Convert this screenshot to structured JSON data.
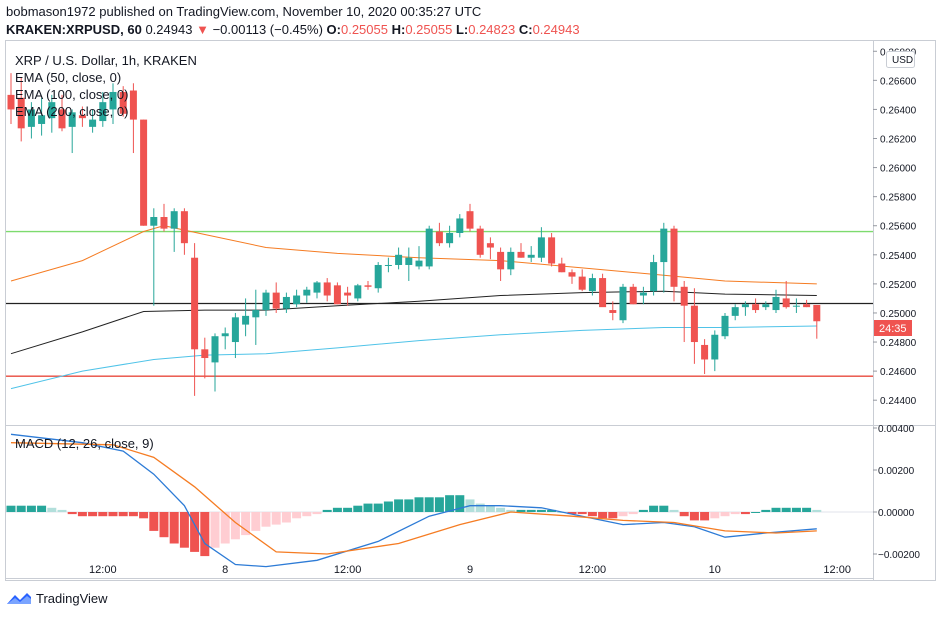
{
  "header": {
    "line1": "bobmason1972 published on TradingView.com, November 10, 2020 00:35:27 UTC",
    "symbol": "KRAKEN:XRPUSD, 60",
    "last": "0.24943",
    "arrow": "▼",
    "change": "−0.00113 (−0.45%)",
    "o_label": "O:",
    "o_value": "0.25055",
    "h_label": "H:",
    "h_value": "0.25055",
    "l_label": "L:",
    "l_value": "0.24823",
    "c_label": "C:",
    "c_value": "0.24943"
  },
  "legend": {
    "title": "XRP / U.S. Dollar, 1h, KRAKEN",
    "ema50": "EMA (50, close, 0)",
    "ema100": "EMA (100, close, 0)",
    "ema200": "EMA (200, close, 0)",
    "macd": "MACD (12, 26, close, 9)"
  },
  "axis": {
    "currency": "USD",
    "countdown": "24:35"
  },
  "footer": {
    "brand": "TradingView"
  },
  "colors": {
    "up": "#26a69a",
    "down": "#ef5350",
    "ema50": "#f57c23",
    "ema100": "#222222",
    "ema200": "#4fc3e8",
    "support_green": "#7ddb6e",
    "support_red": "#e84a3d",
    "macd_line": "#2d7bd6",
    "signal_line": "#f57c23"
  },
  "chart_data": [
    {
      "type": "candlestick",
      "title": "XRP / U.S. Dollar, 1h, KRAKEN",
      "x_ticks": [
        "12:00",
        "8",
        "12:00",
        "9",
        "12:00",
        "10",
        "12:00"
      ],
      "y_ticks": [
        "0.26800",
        "0.26600",
        "0.26400",
        "0.26200",
        "0.26000",
        "0.25800",
        "0.25600",
        "0.25400",
        "0.25200",
        "0.25000",
        "0.24800",
        "0.24600",
        "0.24400"
      ],
      "ylim": [
        0.2425,
        0.2685
      ],
      "hlines": [
        0.2556,
        0.25065,
        0.24565
      ],
      "candles": [
        {
          "o": 0.265,
          "h": 0.2665,
          "l": 0.263,
          "c": 0.264
        },
        {
          "o": 0.2648,
          "h": 0.2662,
          "l": 0.2618,
          "c": 0.2627
        },
        {
          "o": 0.2628,
          "h": 0.2645,
          "l": 0.262,
          "c": 0.264
        },
        {
          "o": 0.263,
          "h": 0.2648,
          "l": 0.2622,
          "c": 0.2636
        },
        {
          "o": 0.2634,
          "h": 0.265,
          "l": 0.2624,
          "c": 0.2645
        },
        {
          "o": 0.264,
          "h": 0.265,
          "l": 0.2625,
          "c": 0.2627
        },
        {
          "o": 0.2628,
          "h": 0.264,
          "l": 0.261,
          "c": 0.2638
        },
        {
          "o": 0.2636,
          "h": 0.2642,
          "l": 0.2628,
          "c": 0.2634
        },
        {
          "o": 0.2628,
          "h": 0.264,
          "l": 0.2624,
          "c": 0.2633
        },
        {
          "o": 0.2632,
          "h": 0.2652,
          "l": 0.2628,
          "c": 0.2645
        },
        {
          "o": 0.264,
          "h": 0.2658,
          "l": 0.263,
          "c": 0.2652
        },
        {
          "o": 0.2652,
          "h": 0.2656,
          "l": 0.2635,
          "c": 0.2637
        },
        {
          "o": 0.2653,
          "h": 0.2658,
          "l": 0.261,
          "c": 0.2633
        },
        {
          "o": 0.2633,
          "h": 0.2633,
          "l": 0.256,
          "c": 0.256
        },
        {
          "o": 0.256,
          "h": 0.2572,
          "l": 0.2505,
          "c": 0.2566
        },
        {
          "o": 0.2566,
          "h": 0.2575,
          "l": 0.2556,
          "c": 0.2558
        },
        {
          "o": 0.2558,
          "h": 0.2572,
          "l": 0.2542,
          "c": 0.257
        },
        {
          "o": 0.257,
          "h": 0.2572,
          "l": 0.254,
          "c": 0.2548
        },
        {
          "o": 0.2538,
          "h": 0.2548,
          "l": 0.2443,
          "c": 0.2475
        },
        {
          "o": 0.2475,
          "h": 0.2483,
          "l": 0.2455,
          "c": 0.2469
        },
        {
          "o": 0.2466,
          "h": 0.2486,
          "l": 0.2446,
          "c": 0.2484
        },
        {
          "o": 0.2484,
          "h": 0.249,
          "l": 0.2475,
          "c": 0.2486
        },
        {
          "o": 0.248,
          "h": 0.25,
          "l": 0.2469,
          "c": 0.2497
        },
        {
          "o": 0.2492,
          "h": 0.251,
          "l": 0.2484,
          "c": 0.2498
        },
        {
          "o": 0.2497,
          "h": 0.2516,
          "l": 0.2478,
          "c": 0.2502
        },
        {
          "o": 0.2502,
          "h": 0.2516,
          "l": 0.2498,
          "c": 0.2514
        },
        {
          "o": 0.2514,
          "h": 0.2521,
          "l": 0.25,
          "c": 0.2503
        },
        {
          "o": 0.2503,
          "h": 0.2514,
          "l": 0.25,
          "c": 0.2511
        },
        {
          "o": 0.2506,
          "h": 0.2516,
          "l": 0.2504,
          "c": 0.2512
        },
        {
          "o": 0.2512,
          "h": 0.2518,
          "l": 0.2507,
          "c": 0.2516
        },
        {
          "o": 0.2514,
          "h": 0.2522,
          "l": 0.251,
          "c": 0.2521
        },
        {
          "o": 0.2521,
          "h": 0.2524,
          "l": 0.2508,
          "c": 0.2512
        },
        {
          "o": 0.2519,
          "h": 0.2521,
          "l": 0.2506,
          "c": 0.2506
        },
        {
          "o": 0.2514,
          "h": 0.2518,
          "l": 0.2505,
          "c": 0.2512
        },
        {
          "o": 0.251,
          "h": 0.252,
          "l": 0.2508,
          "c": 0.2519
        },
        {
          "o": 0.2519,
          "h": 0.2522,
          "l": 0.2516,
          "c": 0.2518
        },
        {
          "o": 0.2517,
          "h": 0.2535,
          "l": 0.2514,
          "c": 0.2533
        },
        {
          "o": 0.2533,
          "h": 0.2538,
          "l": 0.2528,
          "c": 0.2533
        },
        {
          "o": 0.2533,
          "h": 0.2545,
          "l": 0.253,
          "c": 0.254
        },
        {
          "o": 0.2533,
          "h": 0.2545,
          "l": 0.2522,
          "c": 0.2538
        },
        {
          "o": 0.2532,
          "h": 0.2546,
          "l": 0.253,
          "c": 0.2536
        },
        {
          "o": 0.2532,
          "h": 0.256,
          "l": 0.253,
          "c": 0.2558
        },
        {
          "o": 0.2556,
          "h": 0.2562,
          "l": 0.2546,
          "c": 0.2548
        },
        {
          "o": 0.2548,
          "h": 0.256,
          "l": 0.2545,
          "c": 0.2555
        },
        {
          "o": 0.2555,
          "h": 0.2568,
          "l": 0.2552,
          "c": 0.2565
        },
        {
          "o": 0.257,
          "h": 0.2575,
          "l": 0.2556,
          "c": 0.2558
        },
        {
          "o": 0.2558,
          "h": 0.256,
          "l": 0.2538,
          "c": 0.254
        },
        {
          "o": 0.2548,
          "h": 0.2552,
          "l": 0.2537,
          "c": 0.2545
        },
        {
          "o": 0.2542,
          "h": 0.2545,
          "l": 0.2522,
          "c": 0.253
        },
        {
          "o": 0.253,
          "h": 0.2545,
          "l": 0.2526,
          "c": 0.2542
        },
        {
          "o": 0.2542,
          "h": 0.2548,
          "l": 0.2538,
          "c": 0.2538
        },
        {
          "o": 0.2538,
          "h": 0.2546,
          "l": 0.2535,
          "c": 0.254
        },
        {
          "o": 0.2538,
          "h": 0.2559,
          "l": 0.2535,
          "c": 0.2552
        },
        {
          "o": 0.2552,
          "h": 0.2555,
          "l": 0.2532,
          "c": 0.2534
        },
        {
          "o": 0.2534,
          "h": 0.2538,
          "l": 0.2528,
          "c": 0.2528
        },
        {
          "o": 0.2528,
          "h": 0.253,
          "l": 0.252,
          "c": 0.2525
        },
        {
          "o": 0.2525,
          "h": 0.253,
          "l": 0.2515,
          "c": 0.2516
        },
        {
          "o": 0.2515,
          "h": 0.2527,
          "l": 0.2512,
          "c": 0.2524
        },
        {
          "o": 0.2524,
          "h": 0.2527,
          "l": 0.2506,
          "c": 0.2504
        },
        {
          "o": 0.2502,
          "h": 0.2508,
          "l": 0.2495,
          "c": 0.25
        },
        {
          "o": 0.2495,
          "h": 0.252,
          "l": 0.2493,
          "c": 0.2518
        },
        {
          "o": 0.2518,
          "h": 0.252,
          "l": 0.2506,
          "c": 0.2506
        },
        {
          "o": 0.2512,
          "h": 0.2518,
          "l": 0.2506,
          "c": 0.2514
        },
        {
          "o": 0.2515,
          "h": 0.254,
          "l": 0.2512,
          "c": 0.2535
        },
        {
          "o": 0.2535,
          "h": 0.2562,
          "l": 0.2514,
          "c": 0.2558
        },
        {
          "o": 0.2558,
          "h": 0.256,
          "l": 0.2508,
          "c": 0.2518
        },
        {
          "o": 0.2518,
          "h": 0.2522,
          "l": 0.248,
          "c": 0.2505
        },
        {
          "o": 0.2505,
          "h": 0.2517,
          "l": 0.2465,
          "c": 0.248
        },
        {
          "o": 0.2478,
          "h": 0.2482,
          "l": 0.2458,
          "c": 0.2468
        },
        {
          "o": 0.2468,
          "h": 0.2488,
          "l": 0.246,
          "c": 0.2485
        },
        {
          "o": 0.2484,
          "h": 0.25,
          "l": 0.2482,
          "c": 0.2498
        },
        {
          "o": 0.2498,
          "h": 0.2506,
          "l": 0.2495,
          "c": 0.2504
        },
        {
          "o": 0.2504,
          "h": 0.2508,
          "l": 0.2498,
          "c": 0.2506
        },
        {
          "o": 0.2506,
          "h": 0.251,
          "l": 0.25,
          "c": 0.2502
        },
        {
          "o": 0.2504,
          "h": 0.2508,
          "l": 0.2502,
          "c": 0.2506
        },
        {
          "o": 0.2502,
          "h": 0.2516,
          "l": 0.25,
          "c": 0.2511
        },
        {
          "o": 0.251,
          "h": 0.2522,
          "l": 0.2503,
          "c": 0.2504
        },
        {
          "o": 0.2505,
          "h": 0.251,
          "l": 0.25,
          "c": 0.2505
        },
        {
          "o": 0.2506,
          "h": 0.2509,
          "l": 0.2504,
          "c": 0.2504
        },
        {
          "o": 0.25055,
          "h": 0.25055,
          "l": 0.24823,
          "c": 0.24943
        }
      ],
      "series": [
        {
          "name": "EMA (50, close, 0)",
          "values": [
            [
              0,
              0.2522
            ],
            [
              7,
              0.2536
            ],
            [
              13,
              0.2556
            ],
            [
              15,
              0.256
            ],
            [
              19,
              0.2554
            ],
            [
              25,
              0.2545
            ],
            [
              32,
              0.2541
            ],
            [
              40,
              0.2538
            ],
            [
              48,
              0.2536
            ],
            [
              56,
              0.2531
            ],
            [
              64,
              0.2526
            ],
            [
              70,
              0.2522
            ],
            [
              79,
              0.252
            ]
          ]
        },
        {
          "name": "EMA (100, close, 0)",
          "values": [
            [
              0,
              0.2472
            ],
            [
              7,
              0.2487
            ],
            [
              13,
              0.2501
            ],
            [
              19,
              0.2502
            ],
            [
              25,
              0.2502
            ],
            [
              32,
              0.2505
            ],
            [
              40,
              0.2508
            ],
            [
              48,
              0.2512
            ],
            [
              56,
              0.2514
            ],
            [
              64,
              0.2515
            ],
            [
              70,
              0.2513
            ],
            [
              79,
              0.2512
            ]
          ]
        },
        {
          "name": "EMA (200, close, 0)",
          "values": [
            [
              0,
              0.2448
            ],
            [
              7,
              0.246
            ],
            [
              14,
              0.2468
            ],
            [
              19,
              0.2471
            ],
            [
              25,
              0.2472
            ],
            [
              32,
              0.2476
            ],
            [
              40,
              0.2481
            ],
            [
              48,
              0.2485
            ],
            [
              56,
              0.2488
            ],
            [
              64,
              0.249
            ],
            [
              70,
              0.249
            ],
            [
              79,
              0.2491
            ]
          ]
        }
      ]
    },
    {
      "type": "macd",
      "title": "MACD (12, 26, close, 9)",
      "y_ticks": [
        "0.00400",
        "0.00200",
        "0.00000",
        "−0.00200"
      ],
      "ylim": [
        -0.003,
        0.004
      ],
      "histogram": [
        0.0003,
        0.0003,
        0.0003,
        0.0003,
        0.0002,
        0.0001,
        -0.0001,
        -0.0002,
        -0.0002,
        -0.0002,
        -0.0002,
        -0.0002,
        -0.0002,
        -0.0003,
        -0.0009,
        -0.0012,
        -0.0015,
        -0.0017,
        -0.0019,
        -0.0021,
        -0.0017,
        -0.0015,
        -0.0013,
        -0.0011,
        -0.0009,
        -0.0007,
        -0.0006,
        -0.0005,
        -0.0003,
        -0.0002,
        -0.0001,
        0.0001,
        0.0002,
        0.0002,
        0.0003,
        0.0004,
        0.0004,
        0.0005,
        0.0006,
        0.0006,
        0.0007,
        0.0007,
        0.0007,
        0.0008,
        0.0008,
        0.0006,
        0.0004,
        0.0003,
        0.0002,
        0.0001,
        0.0001,
        0.0001,
        0.0001,
        0.0001,
        0.0,
        -0.0001,
        -0.0001,
        -0.0002,
        -0.0003,
        -0.0003,
        -0.0002,
        -0.0001,
        0.0001,
        0.0003,
        0.0003,
        0.0001,
        -0.0002,
        -0.0004,
        -0.0004,
        -0.0003,
        -0.0002,
        -0.0001,
        -0.0001,
        0.0,
        0.0001,
        0.0002,
        0.0002,
        0.0002,
        0.0002,
        0.0001
      ],
      "series": [
        {
          "name": "MACD",
          "values": [
            [
              0,
              0.0037
            ],
            [
              7,
              0.0033
            ],
            [
              11,
              0.0029
            ],
            [
              14,
              0.0018
            ],
            [
              17,
              0.0003
            ],
            [
              19,
              -0.0015
            ],
            [
              22,
              -0.0025
            ],
            [
              25,
              -0.0026
            ],
            [
              30,
              -0.0023
            ],
            [
              36,
              -0.0014
            ],
            [
              41,
              -0.0002
            ],
            [
              45,
              0.0003
            ],
            [
              48,
              0.0003
            ],
            [
              52,
              0.0002
            ],
            [
              56,
              -0.0002
            ],
            [
              60,
              -0.0006
            ],
            [
              64,
              -0.0005
            ],
            [
              67,
              -0.0007
            ],
            [
              70,
              -0.0012
            ],
            [
              74,
              -0.001
            ],
            [
              79,
              -0.0008
            ]
          ]
        },
        {
          "name": "Signal",
          "values": [
            [
              0,
              0.0033
            ],
            [
              10,
              0.0032
            ],
            [
              14,
              0.0026
            ],
            [
              18,
              0.0012
            ],
            [
              22,
              -0.0005
            ],
            [
              26,
              -0.0019
            ],
            [
              31,
              -0.002
            ],
            [
              38,
              -0.0015
            ],
            [
              44,
              -0.0006
            ],
            [
              49,
              0.0
            ],
            [
              55,
              -0.0002
            ],
            [
              60,
              -0.0004
            ],
            [
              65,
              -0.0005
            ],
            [
              70,
              -0.0009
            ],
            [
              75,
              -0.001
            ],
            [
              79,
              -0.0009
            ]
          ]
        }
      ]
    }
  ]
}
